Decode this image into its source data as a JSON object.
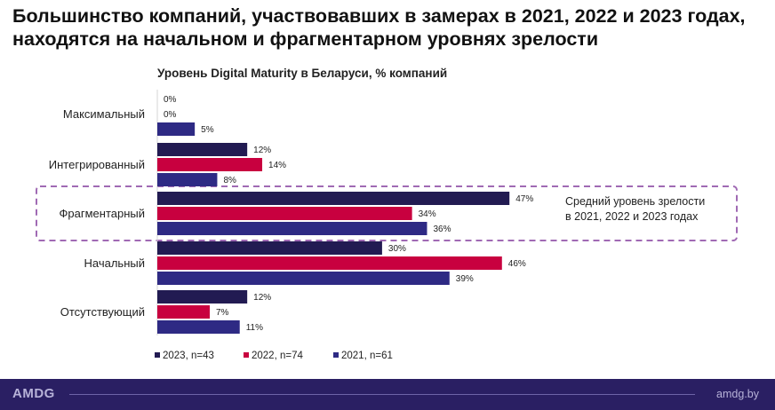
{
  "headline": "Большинство компаний, участвовавших в замерах в 2021, 2022 и 2023 годах, находятся на начальном и фрагментарном уровнях зрелости",
  "chart_data": {
    "type": "bar",
    "orientation": "horizontal",
    "title": "Уровень Digital Maturity в Беларуси, % компаний",
    "categories": [
      "Максимальный",
      "Интегрированный",
      "Фрагментарный",
      "Начальный",
      "Отсутствующий"
    ],
    "series": [
      {
        "name": "2023, n=43",
        "color": "#221b52",
        "values": [
          0,
          12,
          47,
          30,
          12
        ]
      },
      {
        "name": "2022, n=74",
        "color": "#c8003f",
        "values": [
          0,
          14,
          34,
          46,
          7
        ]
      },
      {
        "name": "2021, n=61",
        "color": "#2e2a84",
        "values": [
          5,
          8,
          36,
          39,
          11
        ]
      }
    ],
    "value_suffix": "%",
    "xlim": [
      0,
      50
    ],
    "legend": "bottom",
    "annotation": {
      "category": "Фрагментарный",
      "lines": [
        "Средний уровень зрелости",
        "в 2021, 2022 и 2023 годах"
      ],
      "frame_color": "#a06ab4"
    }
  },
  "footer": {
    "logo": "AMDG",
    "site": "amdg.by"
  }
}
